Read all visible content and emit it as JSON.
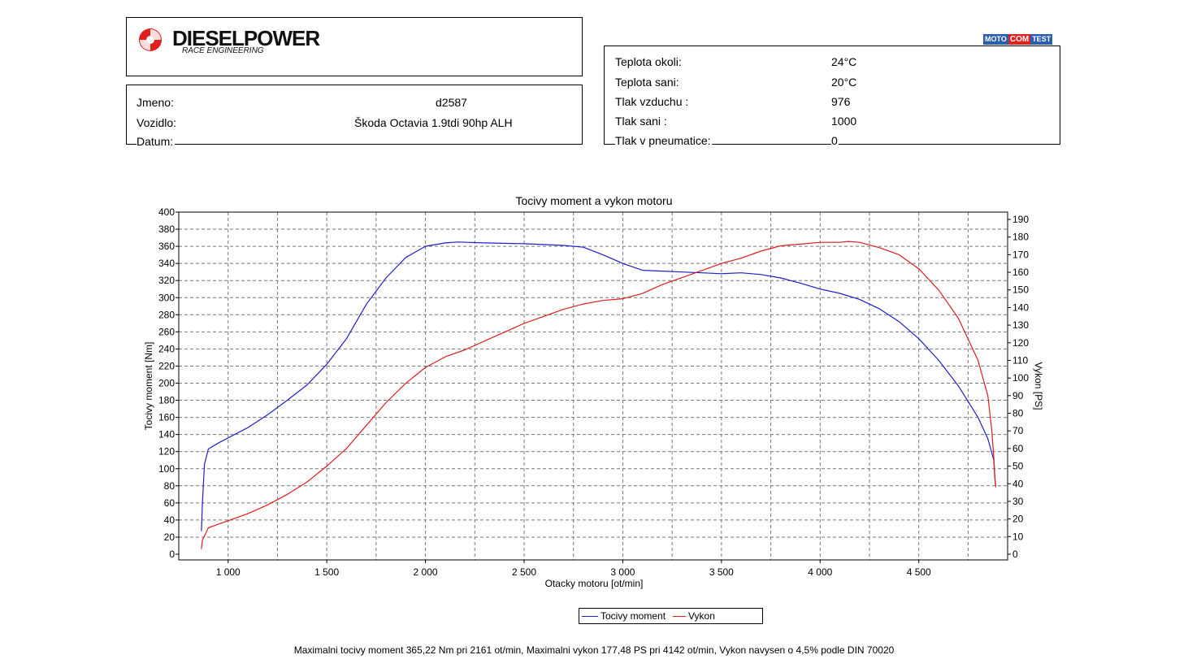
{
  "logo": {
    "brand": "DIESELPOWER",
    "subtitle": "RACE ENGINEERING"
  },
  "motocom": {
    "parts": [
      "MOTO",
      "COM",
      "TEST"
    ]
  },
  "vehicle": [
    {
      "label": "Jmeno:",
      "value": "d2587"
    },
    {
      "label": "Vozidlo:",
      "value": "Škoda Octavia 1.9tdi 90hp ALH"
    },
    {
      "label": "Datum:",
      "value": ""
    }
  ],
  "conditions": [
    {
      "label": "Teplota okoli:",
      "value": "24°C"
    },
    {
      "label": "Teplota sani:",
      "value": "20°C"
    },
    {
      "label": "Tlak vzduchu :",
      "value": "976"
    },
    {
      "label": "Tlak sani :",
      "value": "1000"
    },
    {
      "label": "Tlak v pneumatice:",
      "value": "0"
    }
  ],
  "legend": {
    "torque": "Tocivy moment",
    "power": "Vykon"
  },
  "footer": "Maximalni tocivy moment 365,22 Nm pri 2161 ot/min,  Maximalni vykon 177,48 PS pri 4142 ot/min,  Vykon navysen o 4,5% podle DIN 70020",
  "colors": {
    "torque": "#1f1fc8",
    "power": "#dc1e1e",
    "logo_red": "#e0201f"
  },
  "chart_data": {
    "type": "line",
    "title": "Tocivy moment a vykon motoru",
    "xlabel": "Otacky motoru [ot/min]",
    "ylabel_left": "Tocivy moment [Nm]",
    "ylabel_right": "Vykon [PS]",
    "xlim": [
      750,
      4950
    ],
    "ylim_left": [
      0,
      400
    ],
    "ylim_right": [
      0,
      190
    ],
    "x_ticks": [
      1000,
      1500,
      2000,
      2500,
      3000,
      3500,
      4000,
      4500
    ],
    "x_tick_labels": [
      "1 000",
      "1 500",
      "2 000",
      "2 500",
      "3 000",
      "3 500",
      "4 000",
      "4 500"
    ],
    "y_left_ticks": [
      0,
      20,
      40,
      60,
      80,
      100,
      120,
      140,
      160,
      180,
      200,
      220,
      240,
      260,
      280,
      300,
      320,
      340,
      360,
      380,
      400
    ],
    "y_right_ticks": [
      0,
      10,
      20,
      30,
      40,
      50,
      60,
      70,
      80,
      90,
      100,
      110,
      120,
      130,
      140,
      150,
      160,
      170,
      180,
      190
    ],
    "grid": true,
    "legend_position": "bottom-center",
    "series": [
      {
        "name": "Tocivy moment",
        "axis": "left",
        "x": [
          865,
          870,
          880,
          900,
          950,
          1000,
          1100,
          1200,
          1300,
          1400,
          1500,
          1600,
          1700,
          1800,
          1900,
          2000,
          2100,
          2161,
          2300,
          2500,
          2700,
          2800,
          2900,
          3000,
          3100,
          3200,
          3300,
          3400,
          3500,
          3600,
          3700,
          3800,
          3900,
          4000,
          4100,
          4200,
          4300,
          4400,
          4500,
          4600,
          4700,
          4800,
          4850,
          4880,
          4885,
          4890
        ],
        "y": [
          27,
          60,
          105,
          123,
          130,
          136,
          148,
          163,
          180,
          198,
          222,
          252,
          292,
          323,
          347,
          360,
          364,
          365,
          364,
          363,
          361,
          359,
          350,
          340,
          332,
          331,
          330,
          329,
          328,
          329,
          327,
          323,
          317,
          310,
          305,
          298,
          287,
          272,
          252,
          227,
          197,
          160,
          135,
          110,
          90,
          80
        ]
      },
      {
        "name": "Vykon",
        "axis": "right",
        "x": [
          865,
          870,
          900,
          950,
          1000,
          1100,
          1200,
          1300,
          1400,
          1500,
          1600,
          1700,
          1800,
          1900,
          2000,
          2100,
          2200,
          2300,
          2400,
          2500,
          2600,
          2700,
          2800,
          2900,
          3000,
          3100,
          3200,
          3300,
          3400,
          3500,
          3600,
          3700,
          3800,
          3900,
          4000,
          4100,
          4142,
          4200,
          4300,
          4400,
          4500,
          4600,
          4700,
          4800,
          4850,
          4870,
          4880,
          4885,
          4888,
          4890
        ],
        "y": [
          3,
          8,
          15,
          17,
          19,
          23,
          28,
          34,
          41,
          50,
          60,
          73,
          86,
          97,
          106,
          112,
          116,
          121,
          126,
          131,
          135,
          139,
          142,
          144,
          145,
          148,
          153,
          157,
          161,
          165,
          168,
          172,
          175,
          176,
          177,
          177,
          177.5,
          177,
          174,
          170,
          162,
          150,
          134,
          110,
          90,
          70,
          55,
          45,
          40,
          38
        ]
      }
    ]
  }
}
